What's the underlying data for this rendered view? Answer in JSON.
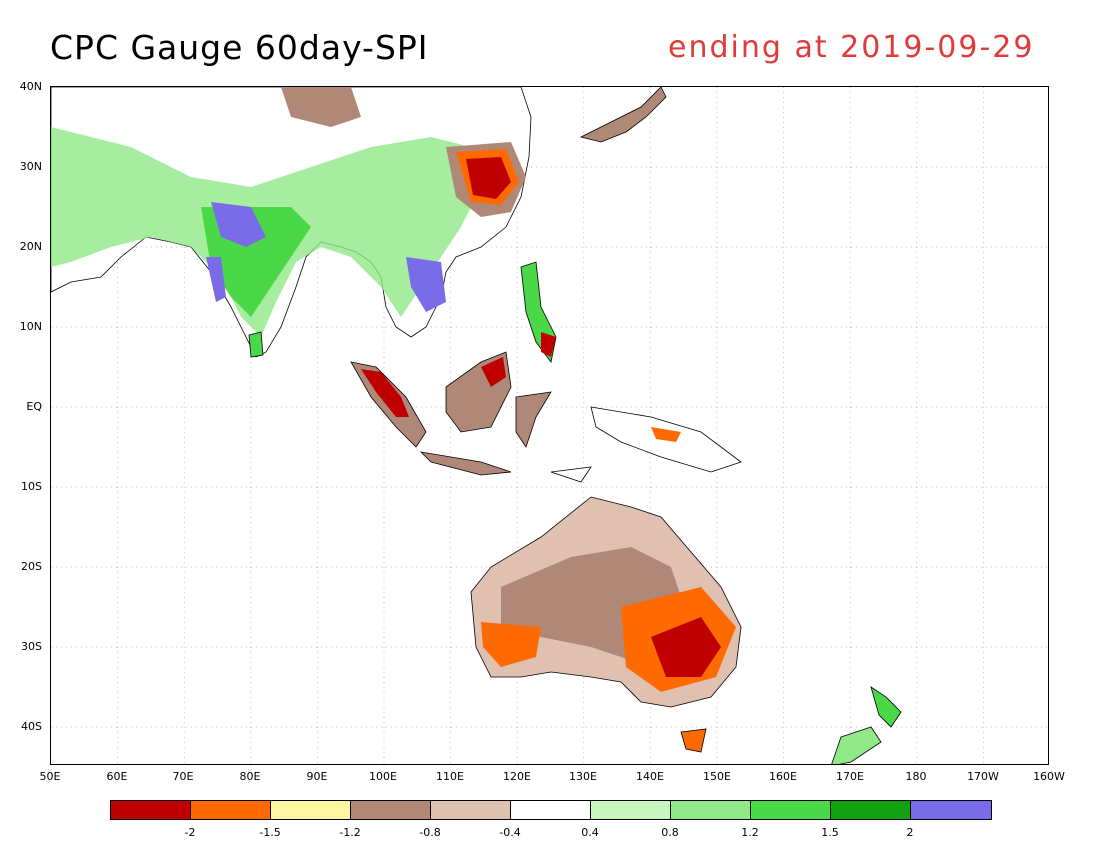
{
  "title": "CPC Gauge 60day-SPI",
  "subtitle": "ending at 2019-09-29",
  "colors": {
    "title": "#000000",
    "subtitle": "#e03b3b",
    "coastline": "#000000",
    "grid": "#aaaaaa"
  },
  "map": {
    "lat_labels": [
      "40N",
      "30N",
      "20N",
      "10N",
      "EQ",
      "10S",
      "20S",
      "30S",
      "40S"
    ],
    "lon_labels": [
      "50E",
      "60E",
      "70E",
      "80E",
      "90E",
      "100E",
      "110E",
      "120E",
      "130E",
      "140E",
      "150E",
      "160E",
      "170E",
      "180",
      "170W",
      "160W"
    ]
  },
  "legend": {
    "colors": [
      "#c00000",
      "#ff6a00",
      "#fff5a0",
      "#b08878",
      "#e0c0b0",
      "#ffffff",
      "#c8f5c0",
      "#90e888",
      "#4ad848",
      "#10a010",
      "#7a6ce8"
    ],
    "ticks": [
      "-2",
      "-1.5",
      "-1.2",
      "-0.8",
      "-0.4",
      "0.4",
      "0.8",
      "1.2",
      "1.5",
      "2"
    ]
  }
}
